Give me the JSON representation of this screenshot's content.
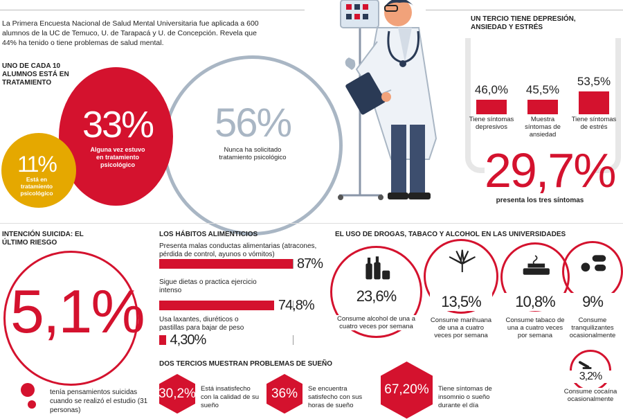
{
  "intro": "La Primera Encuesta Nacional de Salud Mental Universitaria fue aplicada a 600 alumnos de la UC de Temuco, U. de Tarapacá y U. de Concepción. Revela que 44% ha tenido o tiene problemas de salud mental.",
  "treatment": {
    "heading": "UNO DE CADA 10 ALUMNOS ESTÁ EN TRATAMIENTO",
    "red": {
      "value": "33%",
      "caption": "Alguna vez estuvo en tratamiento psicológico"
    },
    "gray": {
      "value": "56%",
      "caption": "Nunca ha solicitado tratamiento psicológico"
    },
    "yellow": {
      "value": "11%",
      "caption": "Está en tratamiento psicológico"
    }
  },
  "third": {
    "heading": "UN TERCIO TIENE DEPRESIÓN, ANSIEDAD Y ESTRÉS",
    "bars": [
      {
        "value": "46,0%",
        "caption": "Tiene síntomas depresivos",
        "level": 46.0
      },
      {
        "value": "45,5%",
        "caption": "Muestra síntomas de ansiedad",
        "level": 45.5
      },
      {
        "value": "53,5%",
        "caption": "Tiene síntomas de estrés",
        "level": 53.5
      }
    ],
    "total": "29,7%",
    "total_caption": "presenta los tres síntomas"
  },
  "suicide": {
    "heading": "INTENCIÓN SUICIDA: EL ÚLTIMO RIESGO",
    "value": "5,1%",
    "caption": "tenía pensamientos suicidas cuando se realizó el estudio (31 personas)"
  },
  "food": {
    "heading": "LOS HÁBITOS ALIMENTICIOS",
    "items": [
      {
        "label": "Presenta malas conductas alimentarias (atracones, pérdida de control, ayunos o vómitos)",
        "value": "87%",
        "level": 87
      },
      {
        "label": "Sigue dietas o practica ejercicio intenso",
        "value": "74,8%",
        "level": 74.8
      },
      {
        "label": "Usa laxantes, diuréticos o pastillas para bajar de peso",
        "value": "4,30%",
        "level": 4.3
      }
    ]
  },
  "sleep": {
    "heading": "DOS TERCIOS MUESTRAN PROBLEMAS DE SUEÑO",
    "items": [
      {
        "value": "30,2%",
        "caption": "Está insatisfecho con la calidad de su sueño"
      },
      {
        "value": "36%",
        "caption": "Se encuentra satisfecho con sus horas de sueño"
      },
      {
        "value": "67,20%",
        "caption": "Tiene síntomas de insomnio o sueño durante el día"
      }
    ]
  },
  "drugs": {
    "heading": "EL USO DE DROGAS, TABACO Y ALCOHOL EN LAS UNIVERSIDADES",
    "items": [
      {
        "icon": "alcohol-bottles-icon",
        "value": "23,6%",
        "caption": "Consume alcohol de una a cuatro veces por semana"
      },
      {
        "icon": "marijuana-leaf-icon",
        "value": "13,5%",
        "caption": "Consume marihuana de una a cuatro veces por semana"
      },
      {
        "icon": "cigarette-ashtray-icon",
        "value": "10,8%",
        "caption": "Consume tabaco de una a cuatro veces por semana"
      },
      {
        "icon": "pills-icon",
        "value": "9%",
        "caption": "Consume tranquilizantes ocasionalmente"
      },
      {
        "icon": "cocaine-icon",
        "value": "3,2%",
        "caption": "Consume cocaína ocasionalmente"
      }
    ]
  },
  "colors": {
    "red": "#d4122e",
    "yellow": "#e5a800",
    "gray": "#a9b6c4"
  }
}
